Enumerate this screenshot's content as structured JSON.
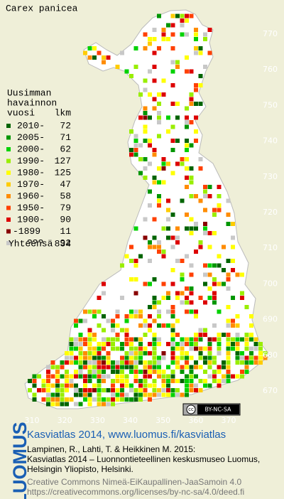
{
  "title": "Carex panicea",
  "legend": {
    "heading": [
      "Uusimman",
      "havainnon",
      "vuosi"
    ],
    "count_heading": "lkm",
    "items": [
      {
        "label": "2010-",
        "count": 72,
        "color": "#006400"
      },
      {
        "label": "2005-",
        "count": 71,
        "color": "#009600"
      },
      {
        "label": "2000-",
        "count": 62,
        "color": "#00d200"
      },
      {
        "label": "1990-",
        "count": 127,
        "color": "#99ee00"
      },
      {
        "label": "1980-",
        "count": 125,
        "color": "#ffff00"
      },
      {
        "label": "1970-",
        "count": 47,
        "color": "#ffcc00"
      },
      {
        "label": "1960-",
        "count": 58,
        "color": "#ff8c00"
      },
      {
        "label": "1950-",
        "count": 79,
        "color": "#ff4000"
      },
      {
        "label": "1900-",
        "count": 90,
        "color": "#dd0000"
      },
      {
        "label": "-1899",
        "count": 11,
        "color": "#880000"
      },
      {
        "label": "???",
        "count": 92,
        "color": "#c8c8c8"
      }
    ],
    "total": {
      "label": "Yhteensä",
      "value": 834
    }
  },
  "x_ticks": [
    310,
    320,
    330,
    340,
    350,
    360,
    370
  ],
  "y_ticks": [
    670,
    680,
    690,
    700,
    710,
    720,
    730,
    740,
    750,
    760,
    770
  ],
  "badge": {
    "cc": "cc",
    "text": "BY-NC-SA"
  },
  "logo": "LUOMUS",
  "footer": {
    "headline": "Kasviatlas 2014, www.luomus.fi/kasviatlas",
    "citation": [
      "Lampinen, R., Lahti, T. & Heikkinen M. 2015:",
      "Kasviatlas 2014 – Luonnontieteellinen keskusmuseo Luomus,",
      "Helsingin Yliopisto, Helsinki."
    ],
    "license": [
      "Creative Commons Nimeä-EiKaupallinen-JaaSamoin 4.0",
      "https://creativecommons.org/licenses/by-nc-sa/4.0/deed.fi"
    ]
  }
}
